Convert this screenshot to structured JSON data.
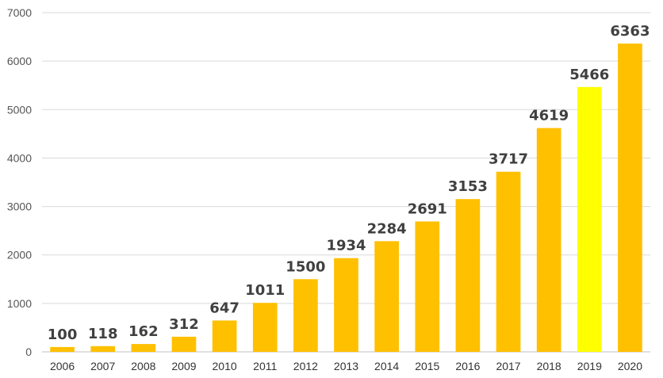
{
  "chart_data": {
    "type": "bar",
    "title": "",
    "xlabel": "",
    "ylabel": "",
    "categories": [
      "2006",
      "2007",
      "2008",
      "2009",
      "2010",
      "2011",
      "2012",
      "2013",
      "2014",
      "2015",
      "2016",
      "2017",
      "2018",
      "2019",
      "2020"
    ],
    "values": [
      100,
      118,
      162,
      312,
      647,
      1011,
      1500,
      1934,
      2284,
      2691,
      3153,
      3717,
      4619,
      5466,
      6363
    ],
    "ylim": [
      0,
      7000
    ],
    "yticks": [
      "0",
      "1000",
      "2000",
      "3000",
      "4000",
      "5000",
      "6000",
      "7000"
    ],
    "data_labels": [
      "100",
      "118",
      "162",
      "312",
      "647",
      "1011",
      "1500",
      "1934",
      "2284",
      "2691",
      "3153",
      "3717",
      "4619",
      "5466",
      "6363"
    ],
    "grid": true,
    "legend": "none",
    "colors": {
      "bar": "#FFC000",
      "highlight_bar": "#FFFF00",
      "highlight_category": "2019"
    }
  }
}
